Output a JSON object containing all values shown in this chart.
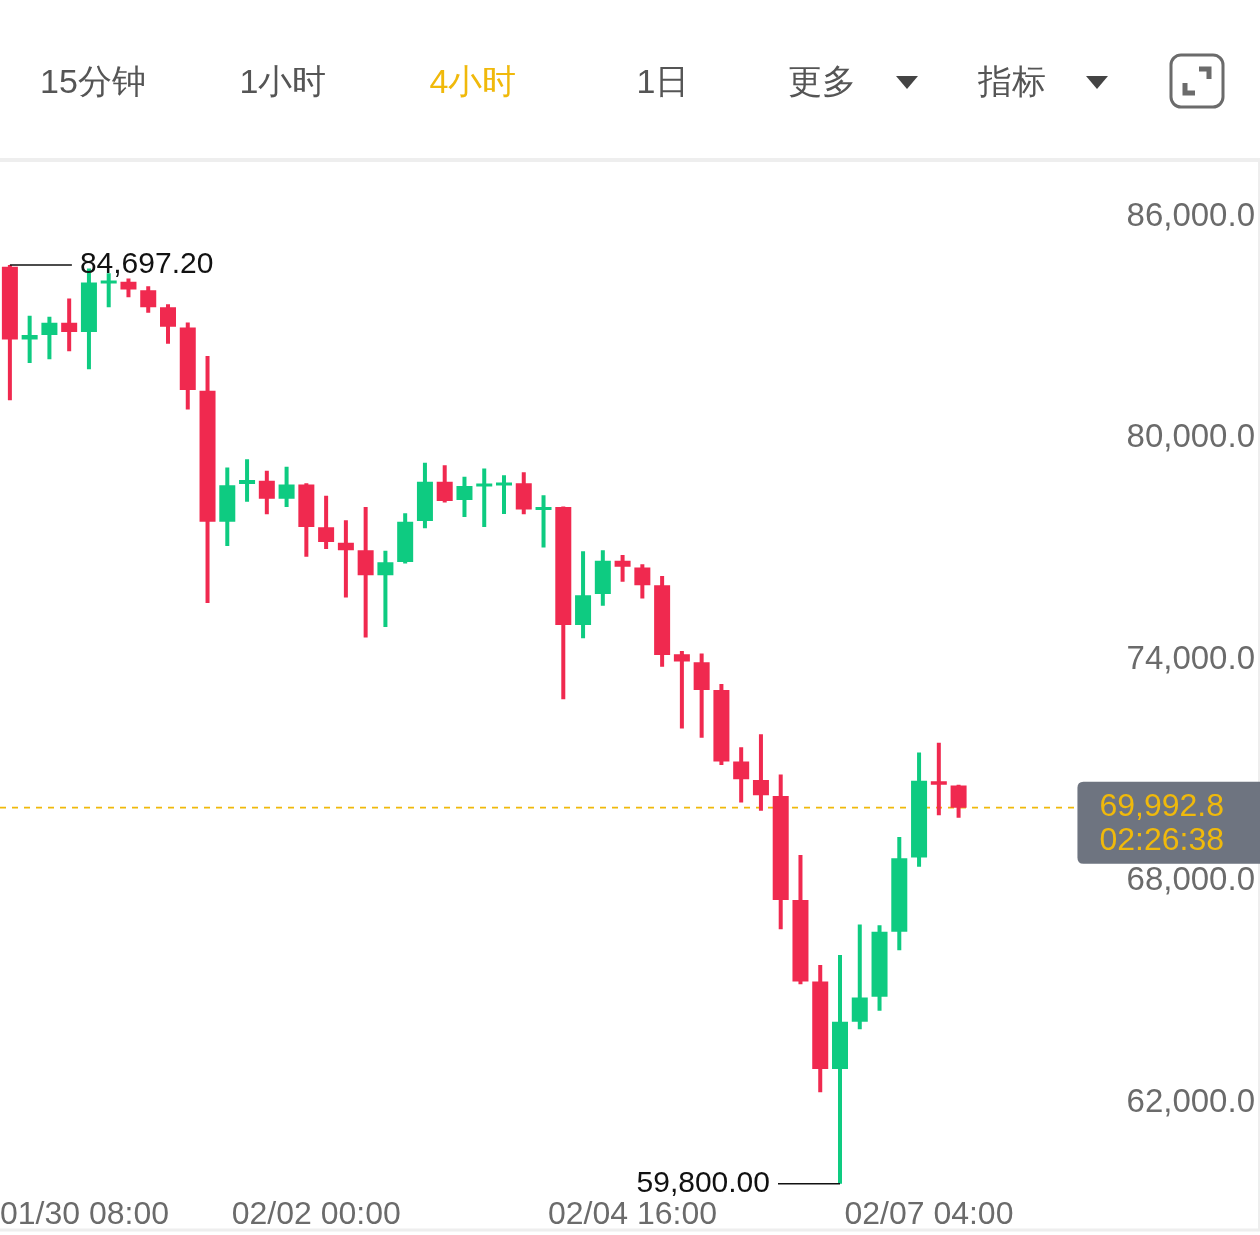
{
  "chart_data": {
    "type": "candlestick",
    "x": [
      "--01-30T10:00",
      "--01-30T14:00",
      "--01-30T18:00",
      "--01-30T22:00",
      "--01-31T02:00",
      "--01-31T06:00",
      "--01-31T10:00",
      "--01-31T14:00",
      "--01-31T18:00",
      "--01-31T22:00",
      "--02-01T02:00",
      "--02-01T06:00",
      "--02-01T10:00",
      "--02-01T14:00",
      "--02-01T18:00",
      "--02-01T22:00",
      "--02-02T02:00",
      "--02-02T06:00",
      "--02-02T10:00",
      "--02-02T14:00",
      "--02-02T18:00",
      "--02-02T22:00",
      "--02-03T02:00",
      "--02-03T06:00",
      "--02-03T10:00",
      "--02-03T14:00",
      "--02-03T18:00",
      "--02-03T22:00",
      "--02-04T02:00",
      "--02-04T06:00",
      "--02-04T10:00",
      "--02-04T14:00",
      "--02-04T18:00",
      "--02-04T22:00",
      "--02-05T02:00",
      "--02-05T06:00",
      "--02-05T10:00",
      "--02-05T14:00",
      "--02-05T18:00",
      "--02-05T22:00",
      "--02-06T02:00",
      "--02-06T06:00",
      "--02-06T10:00",
      "--02-06T14:00",
      "--02-06T18:00",
      "--02-06T22:00",
      "--02-07T02:00",
      "--02-07T06:00",
      "--02-07T10:00"
    ],
    "ohlc": [
      [
        84650,
        84697.2,
        81030,
        82680
      ],
      [
        82680,
        83320,
        82040,
        82800
      ],
      [
        82800,
        83290,
        82140,
        83130
      ],
      [
        83130,
        83790,
        82360,
        82880
      ],
      [
        82880,
        84600,
        81870,
        84220
      ],
      [
        84220,
        84470,
        83550,
        84250
      ],
      [
        84240,
        84330,
        83820,
        84030
      ],
      [
        84010,
        84120,
        83400,
        83550
      ],
      [
        83550,
        83630,
        82560,
        83020
      ],
      [
        83000,
        83140,
        80780,
        81310
      ],
      [
        81290,
        82230,
        75540,
        77740
      ],
      [
        77740,
        79210,
        77080,
        78730
      ],
      [
        78760,
        79430,
        78280,
        78870
      ],
      [
        78850,
        79120,
        77940,
        78360
      ],
      [
        78360,
        79230,
        78140,
        78750
      ],
      [
        78750,
        78780,
        76790,
        77600
      ],
      [
        77590,
        78440,
        77000,
        77190
      ],
      [
        77170,
        77780,
        75690,
        76970
      ],
      [
        76970,
        78140,
        74600,
        76290
      ],
      [
        76290,
        76950,
        74890,
        76640
      ],
      [
        76650,
        77970,
        76610,
        77740
      ],
      [
        77760,
        79340,
        77560,
        78820
      ],
      [
        78820,
        79270,
        78260,
        78300
      ],
      [
        78330,
        78960,
        77870,
        78710
      ],
      [
        78720,
        79180,
        77600,
        78750
      ],
      [
        78750,
        79000,
        77950,
        78780
      ],
      [
        78780,
        79080,
        77940,
        78070
      ],
      [
        78080,
        78460,
        77040,
        78120
      ],
      [
        78140,
        78150,
        72930,
        74940
      ],
      [
        74940,
        76940,
        74580,
        75750
      ],
      [
        75780,
        76970,
        75460,
        76680
      ],
      [
        76680,
        76840,
        76110,
        76520
      ],
      [
        76500,
        76590,
        75660,
        76020
      ],
      [
        76020,
        76270,
        73810,
        74130
      ],
      [
        74150,
        74240,
        72140,
        73950
      ],
      [
        73930,
        74170,
        71890,
        73180
      ],
      [
        73180,
        73340,
        71150,
        71240
      ],
      [
        71240,
        71630,
        70130,
        70760
      ],
      [
        70740,
        71980,
        69910,
        70330
      ],
      [
        70310,
        70890,
        66700,
        67490
      ],
      [
        67490,
        68710,
        65210,
        65280
      ],
      [
        65280,
        65730,
        62280,
        62910
      ],
      [
        62910,
        66000,
        59800,
        64190
      ],
      [
        64190,
        66830,
        63990,
        64850
      ],
      [
        64870,
        66810,
        64490,
        66630
      ],
      [
        66630,
        69200,
        66130,
        68620
      ],
      [
        68640,
        71490,
        68390,
        70720
      ],
      [
        70710,
        71750,
        69790,
        70610
      ],
      [
        70590,
        70610,
        69720,
        69992.8
      ]
    ],
    "colors": [
      "#f0294f",
      "#0ecb81",
      "#0ecb81",
      "#f0294f",
      "#0ecb81",
      "#0ecb81",
      "#f0294f",
      "#f0294f",
      "#f0294f",
      "#f0294f",
      "#f0294f",
      "#0ecb81",
      "#0ecb81",
      "#f0294f",
      "#0ecb81",
      "#f0294f",
      "#f0294f",
      "#f0294f",
      "#f0294f",
      "#0ecb81",
      "#0ecb81",
      "#0ecb81",
      "#f0294f",
      "#0ecb81",
      "#0ecb81",
      "#0ecb81",
      "#f0294f",
      "#0ecb81",
      "#f0294f",
      "#0ecb81",
      "#0ecb81",
      "#f0294f",
      "#f0294f",
      "#f0294f",
      "#f0294f",
      "#f0294f",
      "#f0294f",
      "#f0294f",
      "#f0294f",
      "#f0294f",
      "#f0294f",
      "#f0294f",
      "#0ecb81",
      "#0ecb81",
      "#0ecb81",
      "#0ecb81",
      "#0ecb81",
      "#f0294f",
      "#f0294f"
    ],
    "xlim": [
      "--01-30T08:00",
      "--02-09T23:00"
    ],
    "xticks": [
      {
        "value": "--01-30T08:00",
        "label": "01/30 08:00"
      },
      {
        "value": "--02-02T00:00",
        "label": "02/02 00:00"
      },
      {
        "value": "--02-04T16:00",
        "label": "02/04 16:00"
      },
      {
        "value": "--02-07T04:00",
        "label": "02/07 04:00"
      }
    ],
    "ylim": [
      58550,
      87540
    ],
    "yticks": [
      {
        "value": 62000,
        "label": "62,000.0"
      },
      {
        "value": 68000,
        "label": "68,000.0"
      },
      {
        "value": 74000,
        "label": "74,000.0"
      },
      {
        "value": 80000,
        "label": "80,000.0"
      },
      {
        "value": 86000,
        "label": "86,000.0"
      }
    ],
    "ref_lines": [
      {
        "axis": "y",
        "value": 69992.8,
        "label": "69,992.8",
        "color": "#f0b90b",
        "line_style": "dashed"
      }
    ],
    "annotations": [
      {
        "text": "84,697.20",
        "x": "--01-30T10:00",
        "y": 84697.2
      },
      {
        "text": "59,800.00",
        "x": "--02-06T10:00",
        "y": 59800
      },
      {
        "text": "02:26:38",
        "y": 69992.8
      },
      "15分钟",
      "1小时",
      "4小时",
      "1日",
      "更多",
      "指标"
    ]
  }
}
